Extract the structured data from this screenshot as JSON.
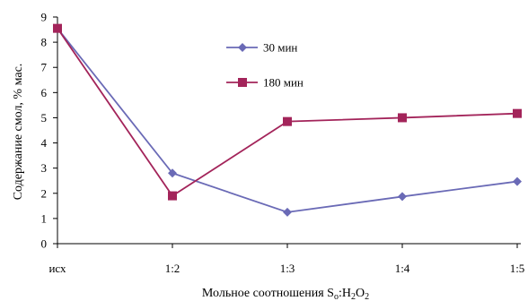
{
  "chart_data": {
    "type": "line",
    "categories": [
      "исх",
      "1:2",
      "1:3",
      "1:4",
      "1:5"
    ],
    "series": [
      {
        "name": "30 мин",
        "values": [
          8.55,
          2.8,
          1.25,
          1.87,
          2.47
        ],
        "color": "#6a6ab6",
        "marker": "diamond"
      },
      {
        "name": "180 мин",
        "values": [
          8.55,
          1.9,
          4.85,
          5.0,
          5.17
        ],
        "color": "#a3245a",
        "marker": "square"
      }
    ],
    "ylim": [
      0,
      9
    ],
    "yticks": [
      "0",
      "1",
      "2",
      "3",
      "4",
      "5",
      "6",
      "7",
      "8",
      "9"
    ],
    "ylabel": "Содержание смол, % мас.",
    "xlabel": "Мольное соотношения S",
    "xlabel_sub1": "o",
    "xlabel_mid": ":H",
    "xlabel_sub2": "2",
    "xlabel_mid2": "O",
    "xlabel_sub3": "2",
    "grid": false,
    "legend_position": "top-center"
  }
}
